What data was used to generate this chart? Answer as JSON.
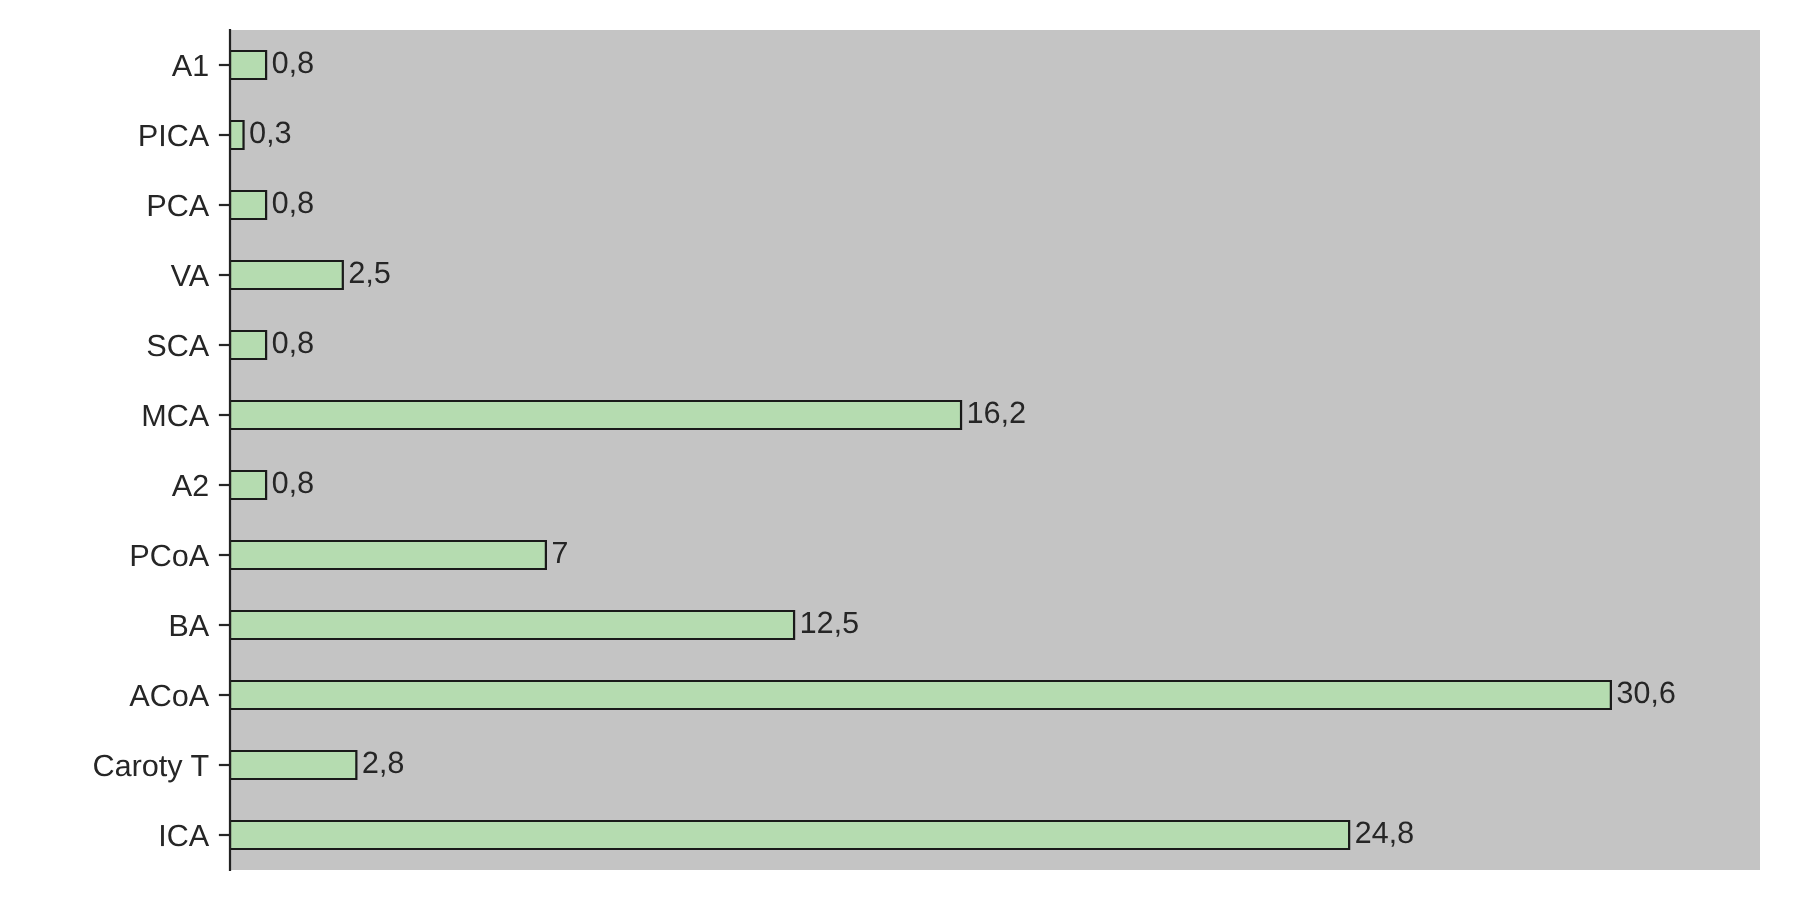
{
  "chart_data": {
    "type": "bar",
    "orientation": "horizontal",
    "categories": [
      "A1",
      "PICA",
      "PCA",
      "VA",
      "SCA",
      "MCA",
      "A2",
      "PCoA",
      "BA",
      "ACoA",
      "Caroty T",
      "ICA"
    ],
    "values": [
      0.8,
      0.3,
      0.8,
      2.5,
      0.8,
      16.2,
      0.8,
      7,
      12.5,
      30.6,
      2.8,
      24.8
    ],
    "value_labels": [
      "0,8",
      "0,3",
      "0,8",
      "2,5",
      "0,8",
      "16,2",
      "0,8",
      "7",
      "12,5",
      "30,6",
      "2,8",
      "24,8"
    ],
    "color": "#b5dcb0",
    "grid": false,
    "legend": false
  }
}
